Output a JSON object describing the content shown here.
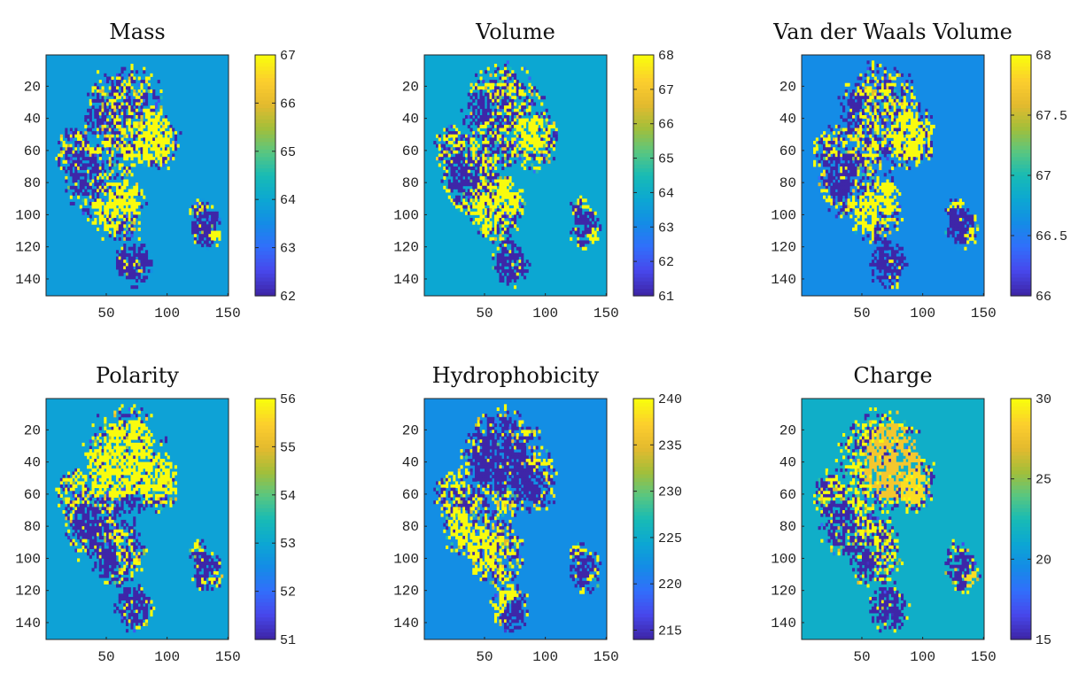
{
  "chart_data": [
    {
      "type": "heatmap",
      "title": "Mass",
      "xlim": [
        1,
        150
      ],
      "ylim": [
        1,
        150
      ],
      "x_ticks": [
        50,
        100,
        150
      ],
      "y_ticks": [
        20,
        40,
        60,
        80,
        100,
        120,
        140
      ],
      "clim": [
        62,
        67
      ],
      "colorbar_ticks": [
        62,
        63,
        64,
        65,
        66,
        67
      ],
      "colormap": "parula",
      "background_value": 63.8,
      "clusters": [
        {
          "x": 50,
          "y": 100,
          "r": 9,
          "value": 67
        },
        {
          "x": 70,
          "y": 88,
          "r": 10,
          "value": 67
        },
        {
          "x": 90,
          "y": 52,
          "r": 11,
          "value": 67
        },
        {
          "x": 75,
          "y": 65,
          "r": 8,
          "value": 67
        },
        {
          "x": 32,
          "y": 75,
          "r": 11,
          "value": 62
        },
        {
          "x": 40,
          "y": 35,
          "r": 9,
          "value": 62
        },
        {
          "x": 72,
          "y": 130,
          "r": 12,
          "value": 62
        },
        {
          "x": 132,
          "y": 108,
          "r": 9,
          "value": 62
        },
        {
          "x": 138,
          "y": 112,
          "r": 6,
          "value": 67
        }
      ]
    },
    {
      "type": "heatmap",
      "title": "Volume",
      "xlim": [
        1,
        150
      ],
      "ylim": [
        1,
        150
      ],
      "x_ticks": [
        50,
        100,
        150
      ],
      "y_ticks": [
        20,
        40,
        60,
        80,
        100,
        120,
        140
      ],
      "clim": [
        61,
        68
      ],
      "colorbar_ticks": [
        61,
        62,
        63,
        64,
        65,
        66,
        67,
        68
      ],
      "colormap": "parula",
      "background_value": 63.8,
      "clusters": [
        {
          "x": 50,
          "y": 100,
          "r": 9,
          "value": 68
        },
        {
          "x": 70,
          "y": 88,
          "r": 8,
          "value": 68
        },
        {
          "x": 88,
          "y": 50,
          "r": 10,
          "value": 68
        },
        {
          "x": 32,
          "y": 75,
          "r": 11,
          "value": 61
        },
        {
          "x": 40,
          "y": 35,
          "r": 10,
          "value": 61
        },
        {
          "x": 72,
          "y": 130,
          "r": 12,
          "value": 61
        },
        {
          "x": 132,
          "y": 108,
          "r": 9,
          "value": 61
        },
        {
          "x": 138,
          "y": 112,
          "r": 5,
          "value": 68
        }
      ]
    },
    {
      "type": "heatmap",
      "title": "Van der Waals Volume",
      "xlim": [
        1,
        150
      ],
      "ylim": [
        1,
        150
      ],
      "x_ticks": [
        50,
        100,
        150
      ],
      "y_ticks": [
        20,
        40,
        60,
        80,
        100,
        120,
        140
      ],
      "clim": [
        66,
        68
      ],
      "colorbar_ticks": [
        66,
        66.5,
        67,
        67.5,
        68
      ],
      "colormap": "parula",
      "background_value": 66.6,
      "clusters": [
        {
          "x": 50,
          "y": 100,
          "r": 9,
          "value": 68
        },
        {
          "x": 70,
          "y": 88,
          "r": 9,
          "value": 68
        },
        {
          "x": 88,
          "y": 50,
          "r": 11,
          "value": 68
        },
        {
          "x": 32,
          "y": 75,
          "r": 11,
          "value": 66
        },
        {
          "x": 40,
          "y": 35,
          "r": 10,
          "value": 66
        },
        {
          "x": 72,
          "y": 130,
          "r": 12,
          "value": 66
        },
        {
          "x": 132,
          "y": 108,
          "r": 9,
          "value": 66
        },
        {
          "x": 138,
          "y": 112,
          "r": 5,
          "value": 68
        }
      ]
    },
    {
      "type": "heatmap",
      "title": "Polarity",
      "xlim": [
        1,
        150
      ],
      "ylim": [
        1,
        150
      ],
      "x_ticks": [
        50,
        100,
        150
      ],
      "y_ticks": [
        20,
        40,
        60,
        80,
        100,
        120,
        140
      ],
      "clim": [
        51,
        56
      ],
      "colorbar_ticks": [
        51,
        52,
        53,
        54,
        55,
        56
      ],
      "colormap": "parula",
      "background_value": 52.9,
      "clusters": [
        {
          "x": 70,
          "y": 40,
          "r": 20,
          "value": 56
        },
        {
          "x": 40,
          "y": 45,
          "r": 12,
          "value": 56
        },
        {
          "x": 100,
          "y": 45,
          "r": 12,
          "value": 56
        },
        {
          "x": 45,
          "y": 100,
          "r": 11,
          "value": 51
        },
        {
          "x": 35,
          "y": 80,
          "r": 11,
          "value": 51
        },
        {
          "x": 70,
          "y": 70,
          "r": 9,
          "value": 51
        },
        {
          "x": 70,
          "y": 128,
          "r": 12,
          "value": 51
        },
        {
          "x": 132,
          "y": 108,
          "r": 9,
          "value": 51
        },
        {
          "x": 138,
          "y": 112,
          "r": 5,
          "value": 56
        }
      ]
    },
    {
      "type": "heatmap",
      "title": "Hydrophobicity",
      "xlim": [
        1,
        150
      ],
      "ylim": [
        1,
        150
      ],
      "x_ticks": [
        50,
        100,
        150
      ],
      "y_ticks": [
        20,
        40,
        60,
        80,
        100,
        120,
        140
      ],
      "clim": [
        214,
        240
      ],
      "colorbar_ticks": [
        215,
        220,
        225,
        230,
        235,
        240
      ],
      "colormap": "parula",
      "background_value": 222,
      "clusters": [
        {
          "x": 45,
          "y": 95,
          "r": 12,
          "value": 240
        },
        {
          "x": 30,
          "y": 80,
          "r": 8,
          "value": 240
        },
        {
          "x": 65,
          "y": 122,
          "r": 8,
          "value": 240
        },
        {
          "x": 60,
          "y": 35,
          "r": 18,
          "value": 214
        },
        {
          "x": 85,
          "y": 55,
          "r": 10,
          "value": 214
        },
        {
          "x": 75,
          "y": 135,
          "r": 9,
          "value": 214
        },
        {
          "x": 132,
          "y": 108,
          "r": 9,
          "value": 214
        },
        {
          "x": 138,
          "y": 112,
          "r": 5,
          "value": 240
        }
      ]
    },
    {
      "type": "heatmap",
      "title": "Charge",
      "xlim": [
        1,
        150
      ],
      "ylim": [
        1,
        150
      ],
      "x_ticks": [
        50,
        100,
        150
      ],
      "y_ticks": [
        20,
        40,
        60,
        80,
        100,
        120,
        140
      ],
      "clim": [
        15,
        30
      ],
      "colorbar_ticks": [
        15,
        20,
        25,
        30
      ],
      "colormap": "parula",
      "background_value": 21.5,
      "clusters": [
        {
          "x": 75,
          "y": 40,
          "r": 18,
          "value": 28
        },
        {
          "x": 90,
          "y": 55,
          "r": 10,
          "value": 29
        },
        {
          "x": 50,
          "y": 100,
          "r": 10,
          "value": 15
        },
        {
          "x": 32,
          "y": 78,
          "r": 11,
          "value": 15
        },
        {
          "x": 72,
          "y": 130,
          "r": 12,
          "value": 15
        },
        {
          "x": 132,
          "y": 108,
          "r": 9,
          "value": 15
        },
        {
          "x": 138,
          "y": 112,
          "r": 5,
          "value": 29
        }
      ]
    }
  ]
}
